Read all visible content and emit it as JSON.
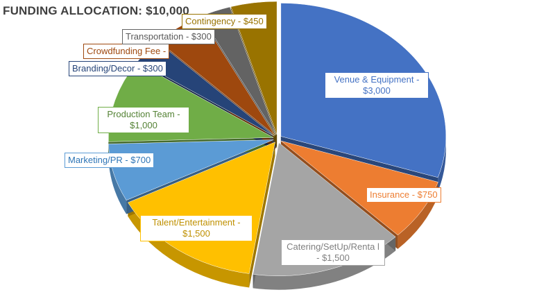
{
  "title": "FUNDING ALLOCATION: $10,000",
  "chart_data": {
    "type": "pie",
    "style": "3d-exploded",
    "title": "FUNDING ALLOCATION: $10,000",
    "categories": [
      "Venue & Equipment",
      "Insurance",
      "Catering/SetUp/Rental",
      "Talent/Entertainment",
      "Marketing/PR",
      "Production Team",
      "Branding/Decor",
      "Crowdfunding Fee",
      "Transportation",
      "Contingency"
    ],
    "values": [
      3000,
      750,
      1500,
      1500,
      700,
      1000,
      300,
      500,
      300,
      450
    ],
    "colors": [
      "#4472c4",
      "#ed7d31",
      "#a5a5a5",
      "#ffc000",
      "#5b9bd5",
      "#70ad47",
      "#264478",
      "#9e480e",
      "#636363",
      "#997300"
    ],
    "labels": [
      "Venue & Equipment - $3,000",
      "Insurance - $750",
      "Catering/SetUp/Renta l - $1,500",
      "Talent/Entertainment - $1,500",
      "Marketing/PR - $700",
      "Production Team - $1,000",
      "Branding/Decor - $300",
      "Crowdfunding Fee -",
      "Transportation - $300",
      "Contingency - $450"
    ],
    "start_angle_deg": 0,
    "direction": "clockwise"
  }
}
